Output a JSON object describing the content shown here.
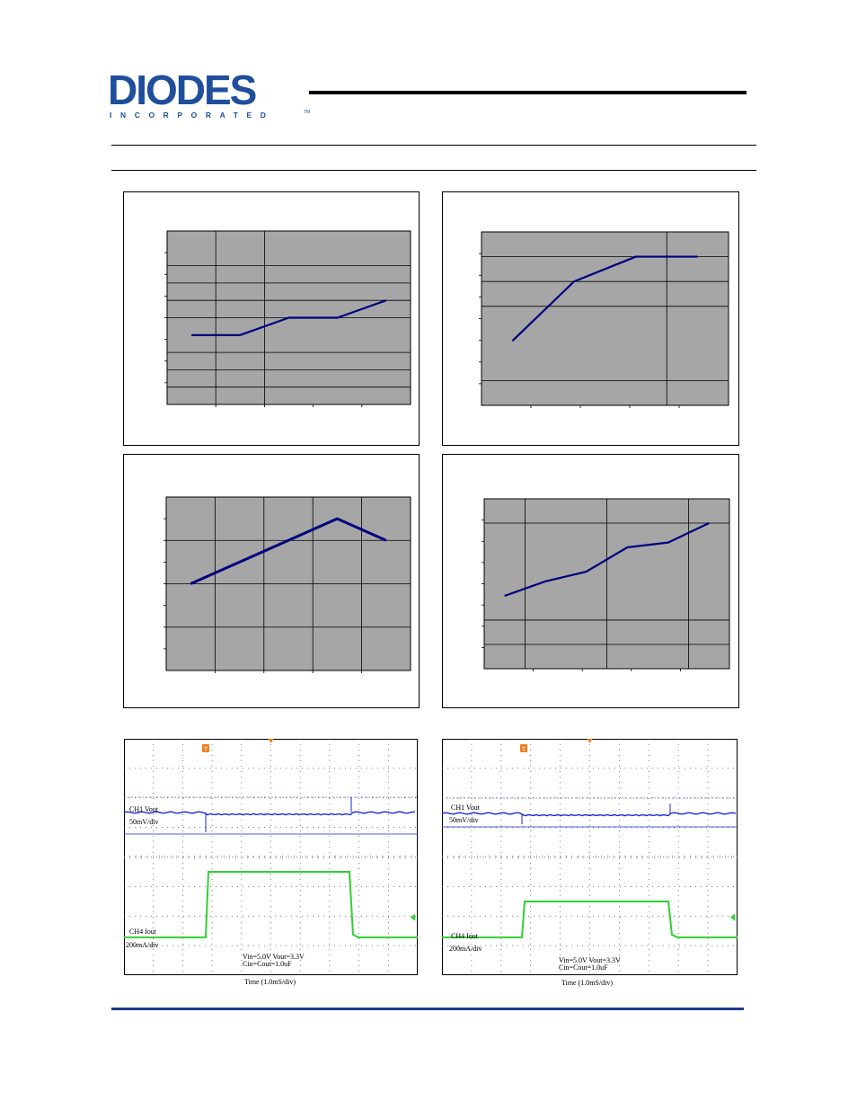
{
  "brand": {
    "logo_text": "DIODES",
    "logo_subtext": "INCORPORATED",
    "trademark": "TM",
    "primary_color": "#1f4e9c",
    "accent_color": "#1f3a8a"
  },
  "chart_data": [
    {
      "type": "line",
      "x": [
        1,
        2,
        3,
        4,
        5
      ],
      "series": [
        {
          "values": [
            4.0,
            4.0,
            5.0,
            5.0,
            6.0
          ]
        }
      ],
      "ylim": [
        0,
        10
      ],
      "grid": true,
      "background": "#a6a6a6",
      "line_color": "#000080"
    },
    {
      "type": "line",
      "x": [
        1,
        2,
        3,
        4
      ],
      "series": [
        {
          "values": [
            2.6,
            5.0,
            6.0,
            6.0
          ]
        }
      ],
      "ylim": [
        0,
        7
      ],
      "grid": true,
      "background": "#a6a6a6",
      "line_color": "#000080"
    },
    {
      "type": "line",
      "x": [
        1,
        2,
        3,
        4,
        5
      ],
      "series": [
        {
          "values": [
            2.0,
            2.5,
            3.0,
            3.5,
            3.0
          ]
        }
      ],
      "ylim": [
        0,
        4
      ],
      "grid": true,
      "background": "#a6a6a6",
      "line_color": "#000080"
    },
    {
      "type": "line",
      "x": [
        1,
        2,
        3,
        4,
        5,
        6
      ],
      "series": [
        {
          "values": [
            3.0,
            3.6,
            4.0,
            5.0,
            5.2,
            6.0
          ]
        }
      ],
      "ylim": [
        0,
        7
      ],
      "grid": true,
      "background": "#a6a6a6",
      "line_color": "#000080"
    }
  ],
  "scopes": [
    {
      "ch1_label": "CH1  Vout",
      "ch1_scale": "50mV/div",
      "ch4_label": "CH4  Iout",
      "ch4_scale": "200mA/div",
      "conditions_line1": "Vin=5.0V  Vout=3.3V",
      "conditions_line2": "Cin=Cout=1.0uF",
      "time_label": "Time (1.0mS/div)",
      "trigger_marker": "T",
      "ch1_color": "#1a2ad6",
      "ch4_color": "#2fd12f",
      "load_step_level": 0.58
    },
    {
      "ch1_label": "CH1  Vout",
      "ch1_scale": "50mV/div",
      "ch4_label": "CH4  Iout",
      "ch4_scale": "200mA/div",
      "conditions_line1": "Vin=5.0V  Vout=3.3V",
      "conditions_line2": "Cin=Cout=1.0uF",
      "time_label": "Time (1.0mS/div)",
      "trigger_marker": "T",
      "ch1_color": "#1a2ad6",
      "ch4_color": "#2fd12f",
      "load_step_level": 0.3
    }
  ]
}
